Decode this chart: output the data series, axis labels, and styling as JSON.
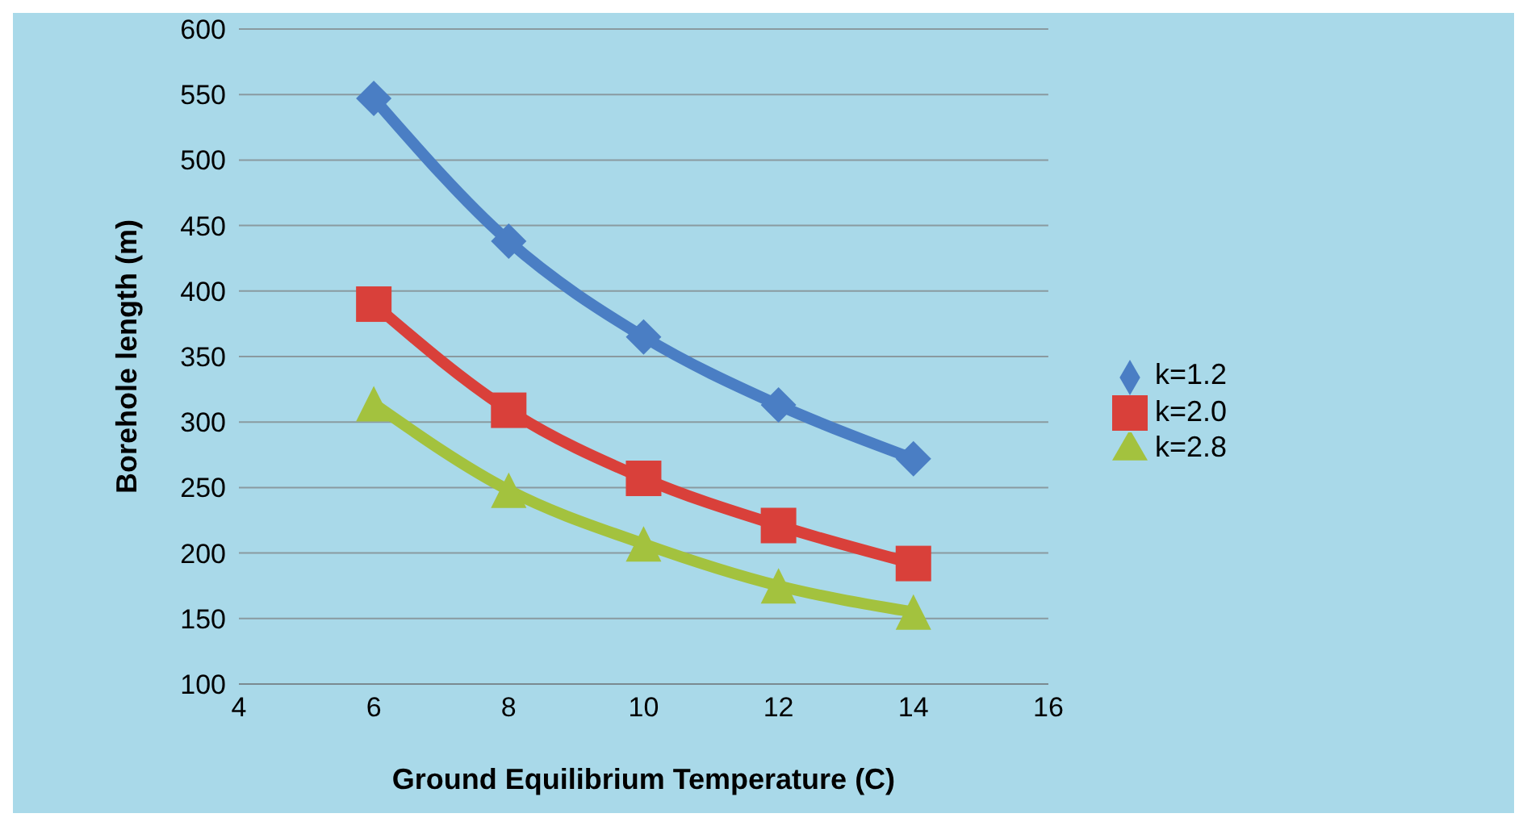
{
  "chart_data": {
    "type": "line",
    "xlabel": "Ground Equilibrium Temperature (C)",
    "ylabel": "Borehole length (m)",
    "x": [
      6,
      8,
      10,
      12,
      14
    ],
    "xlim": [
      4,
      16
    ],
    "xticks": [
      4,
      6,
      8,
      10,
      12,
      14,
      16
    ],
    "ylim": [
      100,
      600
    ],
    "yticks": [
      100,
      150,
      200,
      250,
      300,
      350,
      400,
      450,
      500,
      550,
      600
    ],
    "grid": "y",
    "legend": "right",
    "series": [
      {
        "name": "k=1.2",
        "color": "#4a7ec4",
        "marker": "diamond",
        "values": [
          547,
          438,
          365,
          313,
          272
        ]
      },
      {
        "name": "k=2.0",
        "color": "#d9403a",
        "marker": "square",
        "values": [
          390,
          309,
          257,
          221,
          192
        ]
      },
      {
        "name": "k=2.8",
        "color": "#a3c23e",
        "marker": "triangle",
        "values": [
          314,
          248,
          207,
          175,
          155
        ]
      }
    ]
  }
}
